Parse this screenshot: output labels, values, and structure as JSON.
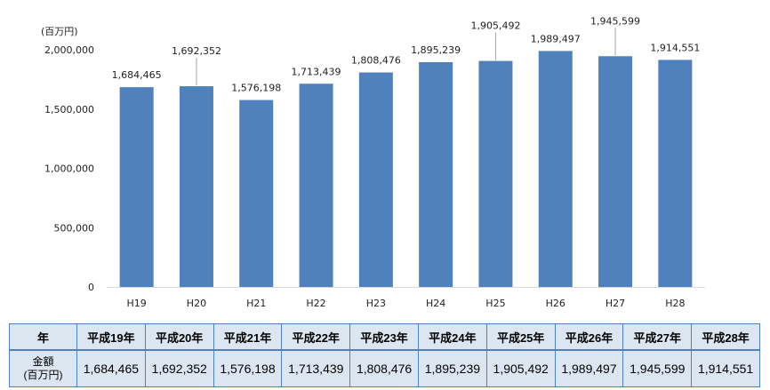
{
  "unit_label": "(百万円)",
  "chart_data": {
    "type": "bar",
    "categories": [
      "H19",
      "H20",
      "H21",
      "H22",
      "H23",
      "H24",
      "H25",
      "H26",
      "H27",
      "H28"
    ],
    "values": [
      1684465,
      1692352,
      1576198,
      1713439,
      1808476,
      1895239,
      1905492,
      1989497,
      1945599,
      1914551
    ],
    "value_labels": [
      "1,684,465",
      "1,692,352",
      "1,576,198",
      "1,713,439",
      "1,808,476",
      "1,895,239",
      "1,905,492",
      "1,989,497",
      "1,945,599",
      "1,914,551"
    ],
    "ylim": [
      0,
      2000000
    ],
    "yticks": [
      0,
      500000,
      1000000,
      1500000,
      2000000
    ],
    "ytick_labels": [
      "0",
      "500,000",
      "1,000,000",
      "1,500,000",
      "2,000,000"
    ],
    "grid": false,
    "bar_color": "#4f81bd"
  },
  "table": {
    "header_label": "年",
    "row_label_line1": "金額",
    "row_label_line2": "(百万円)",
    "years": [
      "平成19年",
      "平成20年",
      "平成21年",
      "平成22年",
      "平成23年",
      "平成24年",
      "平成25年",
      "平成26年",
      "平成27年",
      "平成28年"
    ],
    "amounts": [
      "1,684,465",
      "1,692,352",
      "1,576,198",
      "1,713,439",
      "1,808,476",
      "1,895,239",
      "1,905,492",
      "1,989,497",
      "1,945,599",
      "1,914,551"
    ]
  }
}
